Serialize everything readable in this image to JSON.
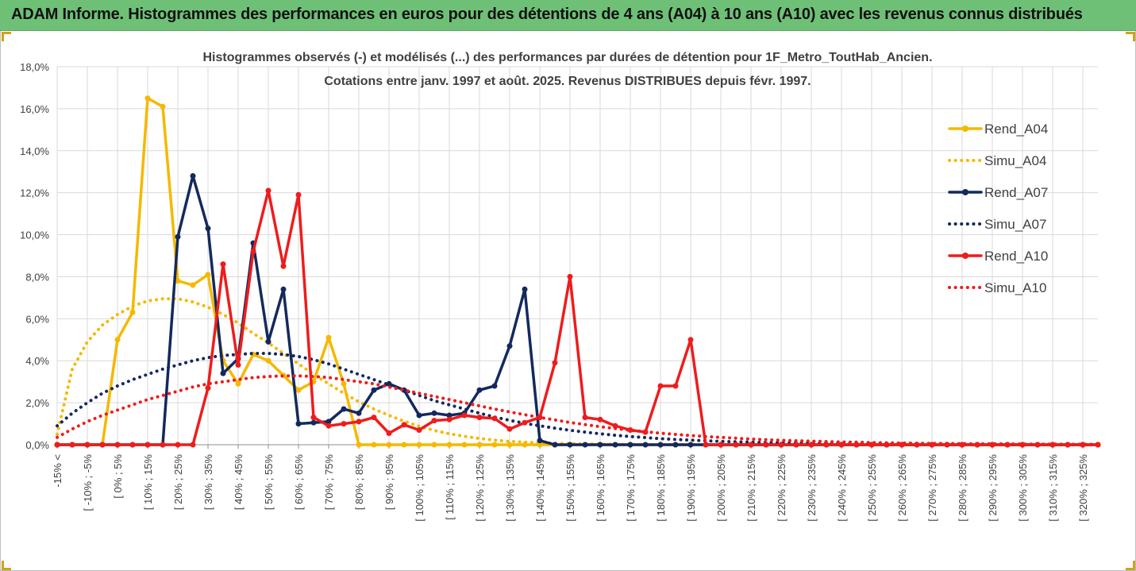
{
  "banner": {
    "title": "ADAM Informe. Histogrammes des performances en euros pour des détentions de 4 ans (A04) à 10 ans (A10) avec les revenus connus distribués"
  },
  "colors": {
    "banner_bg": "#6fc077",
    "series_A04": "#f5b800",
    "series_A07": "#13295e",
    "series_A10": "#ee1c1c",
    "grid": "#d9d9d9"
  },
  "chart_data": {
    "type": "line",
    "title_lines": [
      "Histogrammes observés (-) et modélisés (...) des performances par durées de détention pour 1F_Metro_ToutHab_Ancien.",
      "Cotations entre janv. 1997 et août. 2025. Revenus DISTRIBUES depuis févr. 1997."
    ],
    "xlabel": "",
    "ylabel": "",
    "ylim": [
      0,
      18
    ],
    "y_unit": "%",
    "y_ticks": [
      "0,0%",
      "2,0%",
      "4,0%",
      "6,0%",
      "8,0%",
      "10,0%",
      "12,0%",
      "14,0%",
      "16,0%",
      "18,0%"
    ],
    "grid": true,
    "legend_position": "right",
    "x_tick_labels": [
      "-15% <",
      "[ -10% ; -5%",
      "[ 0% ; 5%",
      "[ 10% ; 15%",
      "[ 20% ; 25%",
      "[ 30% ; 35%",
      "[ 40% ; 45%",
      "[ 50% ; 55%",
      "[ 60% ; 65%",
      "[ 70% ; 75%",
      "[ 80% ; 85%",
      "[ 90% ; 95%",
      "[ 100% ; 105%",
      "[ 110% ; 115%",
      "[ 120% ; 125%",
      "[ 130% ; 135%",
      "[ 140% ; 145%",
      "[ 150% ; 155%",
      "[ 160% ; 165%",
      "[ 170% ; 175%",
      "[ 180% ; 185%",
      "[ 190% ; 195%",
      "[ 200% ; 205%",
      "[ 210% ; 215%",
      "[ 220% ; 225%",
      "[ 230% ; 235%",
      "[ 240% ; 245%",
      "[ 250% ; 255%",
      "[ 260% ; 265%",
      "[ 270% ; 275%",
      "[ 280% ; 285%",
      "[ 290% ; 295%",
      "[ 300% ; 305%",
      "[ 310% ; 315%",
      "[ 320% ; 325%"
    ],
    "series": [
      {
        "name": "Rend_A04",
        "style": "solid",
        "color": "#f5b800",
        "values": [
          0,
          0,
          0,
          0,
          5.0,
          6.3,
          16.5,
          16.1,
          7.8,
          7.6,
          8.1,
          4.0,
          2.9,
          4.3,
          4.0,
          3.3,
          2.6,
          3.0,
          5.1,
          2.9,
          0,
          0,
          0,
          0,
          0,
          0,
          0,
          0,
          0,
          0,
          0,
          0,
          0,
          0,
          0,
          0,
          0,
          0,
          0,
          0,
          0,
          0,
          0,
          0,
          0,
          0,
          0,
          0,
          0,
          0,
          0,
          0,
          0,
          0,
          0,
          0,
          0,
          0,
          0,
          0,
          0,
          0,
          0,
          0,
          0,
          0,
          0,
          0,
          0,
          0
        ]
      },
      {
        "name": "Simu_A04",
        "style": "dotted",
        "color": "#f5b800",
        "values": [
          0.5,
          3.6,
          4.9,
          5.7,
          6.2,
          6.6,
          6.85,
          6.95,
          6.95,
          6.8,
          6.55,
          6.2,
          5.8,
          5.3,
          4.85,
          4.35,
          3.85,
          3.35,
          2.9,
          2.45,
          2.05,
          1.7,
          1.4,
          1.12,
          0.88,
          0.68,
          0.52,
          0.4,
          0.3,
          0.22,
          0.16,
          0.12,
          0.09,
          0.07,
          0.05,
          0.04,
          0.03,
          0.02,
          0.02,
          0.01,
          0.01,
          0.01,
          0.01,
          0,
          0,
          0,
          0,
          0,
          0,
          0,
          0,
          0,
          0,
          0,
          0,
          0,
          0,
          0,
          0,
          0,
          0,
          0,
          0,
          0,
          0,
          0,
          0,
          0,
          0,
          0
        ]
      },
      {
        "name": "Rend_A07",
        "style": "solid",
        "color": "#13295e",
        "values": [
          0,
          0,
          0,
          0,
          0,
          0,
          0,
          0,
          9.9,
          12.8,
          10.3,
          3.4,
          4.1,
          9.6,
          4.9,
          7.4,
          1.0,
          1.05,
          1.1,
          1.7,
          1.5,
          2.6,
          2.9,
          2.6,
          1.4,
          1.5,
          1.4,
          1.5,
          2.6,
          2.8,
          4.7,
          7.4,
          0.2,
          0,
          0,
          0,
          0,
          0,
          0,
          0,
          0,
          0,
          0,
          0,
          0,
          0,
          0,
          0,
          0,
          0,
          0,
          0,
          0,
          0,
          0,
          0,
          0,
          0,
          0,
          0,
          0,
          0,
          0,
          0,
          0,
          0,
          0,
          0,
          0,
          0
        ]
      },
      {
        "name": "Simu_A07",
        "style": "dotted",
        "color": "#13295e",
        "values": [
          0.9,
          1.5,
          2.0,
          2.45,
          2.8,
          3.1,
          3.35,
          3.6,
          3.8,
          4.0,
          4.15,
          4.25,
          4.3,
          4.35,
          4.35,
          4.3,
          4.2,
          4.05,
          3.85,
          3.6,
          3.35,
          3.1,
          2.85,
          2.6,
          2.35,
          2.1,
          1.9,
          1.7,
          1.5,
          1.32,
          1.16,
          1.02,
          0.9,
          0.79,
          0.69,
          0.6,
          0.52,
          0.45,
          0.39,
          0.34,
          0.29,
          0.25,
          0.22,
          0.19,
          0.16,
          0.14,
          0.12,
          0.1,
          0.09,
          0.08,
          0.07,
          0.06,
          0.05,
          0.05,
          0.04,
          0.04,
          0.03,
          0.03,
          0.03,
          0.02,
          0.02,
          0.02,
          0.02,
          0.01,
          0.01,
          0.01,
          0.01,
          0.01,
          0.01,
          0.01
        ]
      },
      {
        "name": "Rend_A10",
        "style": "solid",
        "color": "#ee1c1c",
        "values": [
          0,
          0,
          0,
          0,
          0,
          0,
          0,
          0,
          0,
          0,
          2.7,
          8.6,
          3.8,
          9.2,
          12.1,
          8.5,
          11.9,
          1.3,
          0.9,
          1.0,
          1.1,
          1.3,
          0.55,
          0.95,
          0.7,
          1.15,
          1.2,
          1.4,
          1.3,
          1.25,
          0.75,
          1.05,
          1.3,
          3.9,
          8.0,
          1.3,
          1.2,
          0.9,
          0.7,
          0.6,
          2.8,
          2.8,
          5.0,
          0,
          0,
          0,
          0,
          0,
          0,
          0,
          0,
          0,
          0,
          0,
          0,
          0,
          0,
          0,
          0,
          0,
          0,
          0,
          0,
          0,
          0,
          0,
          0,
          0,
          0,
          0
        ]
      },
      {
        "name": "Simu_A10",
        "style": "dotted",
        "color": "#ee1c1c",
        "values": [
          0.35,
          0.75,
          1.1,
          1.4,
          1.65,
          1.9,
          2.15,
          2.35,
          2.55,
          2.75,
          2.9,
          3.0,
          3.1,
          3.2,
          3.25,
          3.28,
          3.28,
          3.25,
          3.2,
          3.1,
          3.0,
          2.9,
          2.75,
          2.6,
          2.45,
          2.3,
          2.15,
          2.0,
          1.85,
          1.7,
          1.56,
          1.43,
          1.3,
          1.18,
          1.06,
          0.96,
          0.86,
          0.77,
          0.69,
          0.62,
          0.55,
          0.49,
          0.44,
          0.39,
          0.35,
          0.31,
          0.27,
          0.24,
          0.21,
          0.19,
          0.17,
          0.15,
          0.13,
          0.12,
          0.1,
          0.09,
          0.08,
          0.07,
          0.06,
          0.06,
          0.05,
          0.04,
          0.04,
          0.04,
          0.03,
          0.03,
          0.03,
          0.02,
          0.02,
          0.02
        ]
      }
    ]
  }
}
